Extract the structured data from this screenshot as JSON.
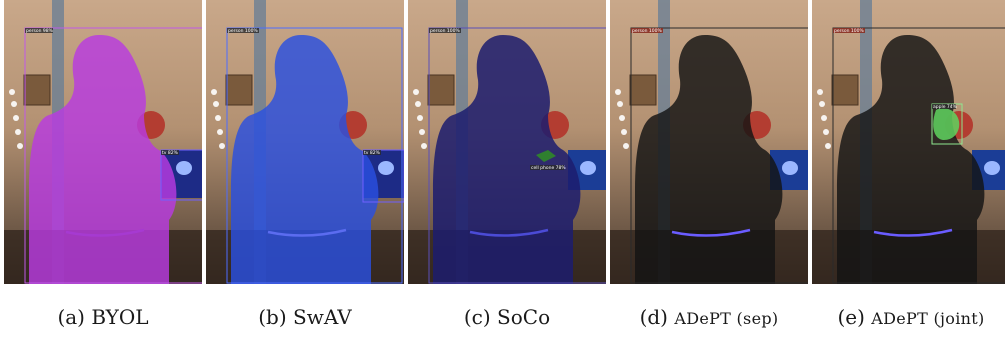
{
  "figure": {
    "panels": [
      {
        "id": "a",
        "prefix": "(a)",
        "name": "BYOL",
        "overlay_color": "#b83ae0",
        "overlay_opacity": 0.8,
        "detections": [
          {
            "label": "person 98%"
          },
          {
            "label": "tv 82%"
          }
        ]
      },
      {
        "id": "b",
        "prefix": "(b)",
        "name": "SwAV",
        "overlay_color": "#2a4fe0",
        "overlay_opacity": 0.8,
        "detections": [
          {
            "label": "person 100%"
          },
          {
            "label": "tv 82%"
          }
        ]
      },
      {
        "id": "c",
        "prefix": "(c)",
        "name": "SoCo",
        "overlay_color": "#1c1c6e",
        "overlay_opacity": 0.82,
        "detections": [
          {
            "label": "person 100%"
          },
          {
            "label": "cell phone 78%"
          }
        ]
      },
      {
        "id": "d",
        "prefix": "(d)",
        "name": "ADePT (sep)",
        "overlay_color": "#141414",
        "overlay_opacity": 0.78,
        "detections": [
          {
            "label": "person 100%"
          }
        ]
      },
      {
        "id": "e",
        "prefix": "(e)",
        "name": "ADePT (joint)",
        "overlay_color": "#141414",
        "overlay_opacity": 0.78,
        "detections": [
          {
            "label": "person 100%"
          },
          {
            "label": "apple 74%"
          }
        ]
      }
    ]
  }
}
